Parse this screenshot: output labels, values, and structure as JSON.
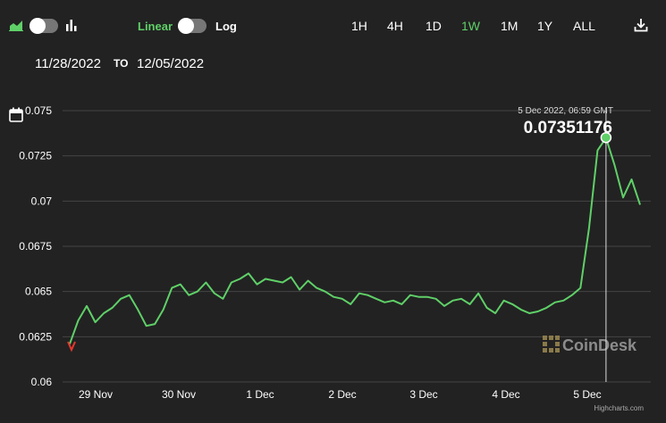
{
  "toolbar": {
    "scale_linear": "Linear",
    "scale_log": "Log",
    "ranges": [
      "1H",
      "4H",
      "1D",
      "1W",
      "1M",
      "1Y",
      "ALL"
    ],
    "active_range": "1W",
    "icons": [
      "area-chart-icon",
      "bar-chart-icon",
      "download-icon",
      "calendar-icon"
    ],
    "accent_color": "#5fd068"
  },
  "date_range": {
    "from": "11/28/2022",
    "to_label": "TO",
    "to": "12/05/2022"
  },
  "tooltip": {
    "timestamp": "5 Dec 2022, 06:59 GMT",
    "value": "0.07351176"
  },
  "watermark": "CoinDesk",
  "credit": "Highcharts.com",
  "chart_data": {
    "type": "line",
    "yticks": [
      "0.075",
      "0.0725",
      "0.07",
      "0.0675",
      "0.065",
      "0.0625",
      "0.06"
    ],
    "ylim": [
      0.06,
      0.075
    ],
    "xticks": [
      "29 Nov",
      "30 Nov",
      "1 Dec",
      "2 Dec",
      "3 Dec",
      "4 Dec",
      "5 Dec"
    ],
    "grid": true,
    "line_color": "#5fd068",
    "series": [
      {
        "x": [
          0,
          0.1,
          0.2,
          0.3,
          0.4,
          0.5,
          0.6,
          0.7,
          0.8,
          0.9,
          1.0,
          1.1,
          1.2,
          1.3,
          1.4,
          1.5,
          1.6,
          1.7,
          1.8,
          1.9,
          2.0,
          2.1,
          2.2,
          2.3,
          2.4,
          2.5,
          2.6,
          2.7,
          2.8,
          2.9,
          3.0,
          3.1,
          3.2,
          3.3,
          3.4,
          3.5,
          3.6,
          3.7,
          3.8,
          3.9,
          4.0,
          4.1,
          4.2,
          4.3,
          4.4,
          4.5,
          4.6,
          4.7,
          4.8,
          4.9,
          5.0,
          5.1,
          5.2,
          5.3,
          5.4,
          5.5,
          5.6,
          5.7,
          5.8,
          5.9,
          6.0,
          6.1,
          6.2,
          6.3,
          6.4,
          6.5,
          6.6,
          6.7
        ],
        "y": [
          0.0621,
          0.0634,
          0.0642,
          0.0633,
          0.0638,
          0.0641,
          0.0646,
          0.0648,
          0.064,
          0.0631,
          0.0632,
          0.064,
          0.0652,
          0.0654,
          0.0648,
          0.065,
          0.0655,
          0.0649,
          0.0646,
          0.0655,
          0.0657,
          0.066,
          0.0654,
          0.0657,
          0.0656,
          0.0655,
          0.0658,
          0.0651,
          0.0656,
          0.0652,
          0.065,
          0.0647,
          0.0646,
          0.0643,
          0.0649,
          0.0648,
          0.0646,
          0.0644,
          0.0645,
          0.0643,
          0.0648,
          0.0647,
          0.0647,
          0.0646,
          0.0642,
          0.0645,
          0.0646,
          0.0643,
          0.0649,
          0.0641,
          0.0638,
          0.0645,
          0.0643,
          0.064,
          0.0638,
          0.0639,
          0.0641,
          0.0644,
          0.0645,
          0.0648,
          0.0652,
          0.0685,
          0.0728,
          0.0735,
          0.072,
          0.0702,
          0.0712,
          0.0698
        ]
      }
    ],
    "highlight": {
      "x": 6.3,
      "y": 0.07351176
    }
  }
}
